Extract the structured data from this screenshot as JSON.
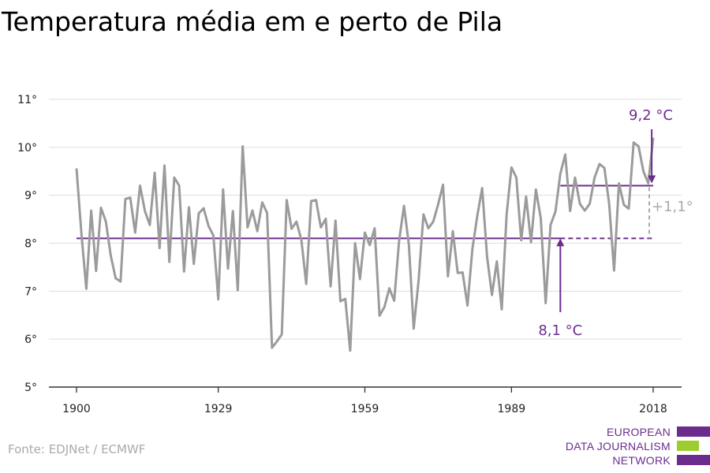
{
  "title": "Temperatura média em e perto de Pila",
  "source": "Fonte: EDJNet / ECMWF",
  "logo": {
    "lines": [
      "EUROPEAN",
      "DATA JOURNALISM",
      "NETWORK"
    ],
    "colors": {
      "purple": "#6b2c8e",
      "green": "#9ccc2e"
    }
  },
  "colors": {
    "line": "#9b9b9b",
    "accent": "#6b2c8e",
    "diff": "#aaaaaa",
    "grid": "#dddddd"
  },
  "chart_data": {
    "type": "line",
    "title": "Temperatura média em e perto de Pila",
    "xlabel": "",
    "ylabel": "",
    "xlim": [
      1900,
      2018
    ],
    "ylim": [
      5,
      11
    ],
    "x_ticks": [
      1900,
      1929,
      1959,
      1989,
      2018
    ],
    "y_ticks": [
      5,
      6,
      7,
      8,
      9,
      10,
      11
    ],
    "y_tick_labels": [
      "5°",
      "6°",
      "7°",
      "8°",
      "9°",
      "10°",
      "11°"
    ],
    "grid": true,
    "series": [
      {
        "x": [
          1900,
          1901,
          1902,
          1903,
          1904,
          1905,
          1906,
          1907,
          1908,
          1909,
          1910,
          1911,
          1912,
          1913,
          1914,
          1915,
          1916,
          1917,
          1918,
          1919,
          1920,
          1921,
          1922,
          1923,
          1924,
          1925,
          1926,
          1927,
          1928,
          1929,
          1930,
          1931,
          1932,
          1933,
          1934,
          1935,
          1936,
          1937,
          1938,
          1939,
          1940,
          1941,
          1942,
          1943,
          1944,
          1945,
          1946,
          1947,
          1948,
          1949,
          1950,
          1951,
          1952,
          1953,
          1954,
          1955,
          1956,
          1957,
          1958,
          1959,
          1960,
          1961,
          1962,
          1963,
          1964,
          1965,
          1966,
          1967,
          1968,
          1969,
          1970,
          1971,
          1972,
          1973,
          1974,
          1975,
          1976,
          1977,
          1978,
          1979,
          1980,
          1981,
          1982,
          1983,
          1984,
          1985,
          1986,
          1987,
          1988,
          1989,
          1990,
          1991,
          1992,
          1993,
          1994,
          1995,
          1996,
          1997,
          1998,
          1999,
          2000,
          2001,
          2002,
          2003,
          2004,
          2005,
          2006,
          2007,
          2008,
          2009,
          2010,
          2011,
          2012,
          2013,
          2014,
          2015,
          2016,
          2017,
          2018
        ],
        "values": [
          9.56,
          8.2,
          7.05,
          8.68,
          7.42,
          8.74,
          8.45,
          7.74,
          7.27,
          7.2,
          8.92,
          8.95,
          8.22,
          9.2,
          8.67,
          8.38,
          9.47,
          7.9,
          9.62,
          7.61,
          9.37,
          9.2,
          7.41,
          8.75,
          7.57,
          8.62,
          8.73,
          8.36,
          8.16,
          6.83,
          9.12,
          7.47,
          8.67,
          7.02,
          10.02,
          8.33,
          8.68,
          8.25,
          8.85,
          8.63,
          5.82,
          5.95,
          6.1,
          8.9,
          8.3,
          8.45,
          8.07,
          7.15,
          8.88,
          8.9,
          8.33,
          8.51,
          7.1,
          8.47,
          6.79,
          6.84,
          5.76,
          8.0,
          7.25,
          8.22,
          7.96,
          8.31,
          6.49,
          6.67,
          7.06,
          6.8,
          8.05,
          8.78,
          7.97,
          6.22,
          7.22,
          8.6,
          8.31,
          8.45,
          8.81,
          9.22,
          7.31,
          8.25,
          7.38,
          7.39,
          6.7,
          7.88,
          8.57,
          9.15,
          7.72,
          6.92,
          7.62,
          6.62,
          8.6,
          9.58,
          9.37,
          8.06,
          8.97,
          8.02,
          9.12,
          8.52,
          6.75,
          8.38,
          8.66,
          9.45,
          9.85,
          8.67,
          9.37,
          8.82,
          8.68,
          8.82,
          9.37,
          9.65,
          9.57,
          8.82,
          7.43,
          9.25,
          8.8,
          8.72,
          10.1,
          10.02,
          9.5,
          9.25,
          10.2
        ]
      }
    ],
    "reference_lines": [
      {
        "label": "8,1 °C",
        "value": 8.1,
        "x_range": [
          1900,
          1999
        ],
        "dashed_to": 2018
      },
      {
        "label": "9,2 °C",
        "value": 9.2,
        "x_range": [
          1999,
          2018
        ]
      }
    ],
    "annotations": [
      {
        "text": "9,2 °C",
        "arrow_to": [
          2017.7,
          9.25
        ]
      },
      {
        "text": "8,1 °C",
        "arrow_to": [
          1999,
          8.1
        ]
      },
      {
        "text": "+1,1°",
        "between": [
          8.1,
          9.2
        ],
        "x": 2018
      }
    ]
  }
}
